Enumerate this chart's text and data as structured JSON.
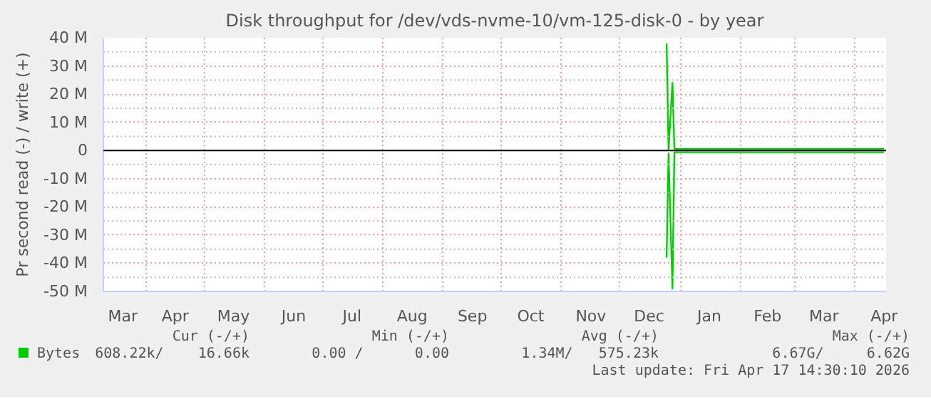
{
  "chart_data": {
    "type": "line",
    "title": "Disk throughput for /dev/vds-nvme-10/vm-125-disk-0 - by year",
    "ylabel": "Pr second read (-) / write (+)",
    "xlim": [
      "2025-03-10",
      "2026-04-17"
    ],
    "xticks": [
      {
        "value": "2025-03-20",
        "label": "Mar"
      },
      {
        "value": "2025-04-01",
        "label": null
      },
      {
        "value": "2025-04-16",
        "label": "Apr"
      },
      {
        "value": "2025-05-01",
        "label": null
      },
      {
        "value": "2025-05-16",
        "label": "May"
      },
      {
        "value": "2025-06-01",
        "label": null
      },
      {
        "value": "2025-06-16",
        "label": "Jun"
      },
      {
        "value": "2025-07-01",
        "label": null
      },
      {
        "value": "2025-07-16",
        "label": "Jul"
      },
      {
        "value": "2025-08-01",
        "label": null
      },
      {
        "value": "2025-08-16",
        "label": "Aug"
      },
      {
        "value": "2025-09-01",
        "label": null
      },
      {
        "value": "2025-09-16",
        "label": "Sep"
      },
      {
        "value": "2025-10-01",
        "label": null
      },
      {
        "value": "2025-10-16",
        "label": "Oct"
      },
      {
        "value": "2025-11-01",
        "label": null
      },
      {
        "value": "2025-11-16",
        "label": "Nov"
      },
      {
        "value": "2025-12-01",
        "label": null
      },
      {
        "value": "2025-12-16",
        "label": "Dec"
      },
      {
        "value": "2026-01-01",
        "label": null
      },
      {
        "value": "2026-01-16",
        "label": "Jan"
      },
      {
        "value": "2026-02-01",
        "label": null
      },
      {
        "value": "2026-02-15",
        "label": "Feb"
      },
      {
        "value": "2026-03-01",
        "label": null
      },
      {
        "value": "2026-03-16",
        "label": "Mar"
      },
      {
        "value": "2026-04-01",
        "label": null
      },
      {
        "value": "2026-04-16",
        "label": "Apr"
      }
    ],
    "ylim": [
      -50,
      40
    ],
    "yticks": [
      {
        "value": -50,
        "label": "-50 M"
      },
      {
        "value": -45,
        "label": null
      },
      {
        "value": -40,
        "label": "-40 M"
      },
      {
        "value": -35,
        "label": null
      },
      {
        "value": -30,
        "label": "-30 M"
      },
      {
        "value": -25,
        "label": null
      },
      {
        "value": -20,
        "label": "-20 M"
      },
      {
        "value": -15,
        "label": null
      },
      {
        "value": -10,
        "label": "-10 M"
      },
      {
        "value": -5,
        "label": null
      },
      0,
      {
        "value": 5,
        "label": null
      },
      {
        "value": 10,
        "label": "10 M"
      },
      {
        "value": 15,
        "label": null
      },
      {
        "value": 20,
        "label": "20 M"
      },
      {
        "value": 25,
        "label": null
      },
      {
        "value": 30,
        "label": "30 M"
      },
      {
        "value": 35,
        "label": null
      },
      {
        "value": 40,
        "label": "40 M"
      }
    ],
    "grid": true,
    "legend": "bottom left",
    "ref_lines": [
      {
        "axis": "y",
        "value": 0,
        "label": null,
        "color": "#000000"
      }
    ],
    "series": [
      {
        "name": "Bytes",
        "color": "#00cc00",
        "x": [
          "2025-12-25",
          "2025-12-26",
          "2025-12-28",
          "2025-12-29",
          "2026-01-15",
          "2026-02-15",
          "2026-03-15",
          "2026-04-16"
        ],
        "values": [
          38,
          0.5,
          24,
          0.6,
          0.6,
          0.6,
          0.6,
          0.6
        ]
      },
      {
        "color": "#00cc00",
        "x": [
          "2025-12-25",
          "2025-12-26",
          "2025-12-28",
          "2025-12-29",
          "2026-01-15",
          "2026-02-15",
          "2026-03-15",
          "2026-04-16"
        ],
        "values": [
          -38,
          -1,
          -49,
          -0.6,
          -0.6,
          -0.6,
          -0.6,
          -0.6
        ]
      }
    ],
    "annotations": [
      "Cur (-/+)",
      "Min (-/+)",
      "Avg (-/+)",
      "Max (-/+)",
      "608.22k/    16.66k",
      "0.00 /      0.00",
      "1.34M/   575.23k",
      "6.67G/     6.62G",
      "Last update: Fri Apr 17 14:30:10 2026"
    ]
  }
}
